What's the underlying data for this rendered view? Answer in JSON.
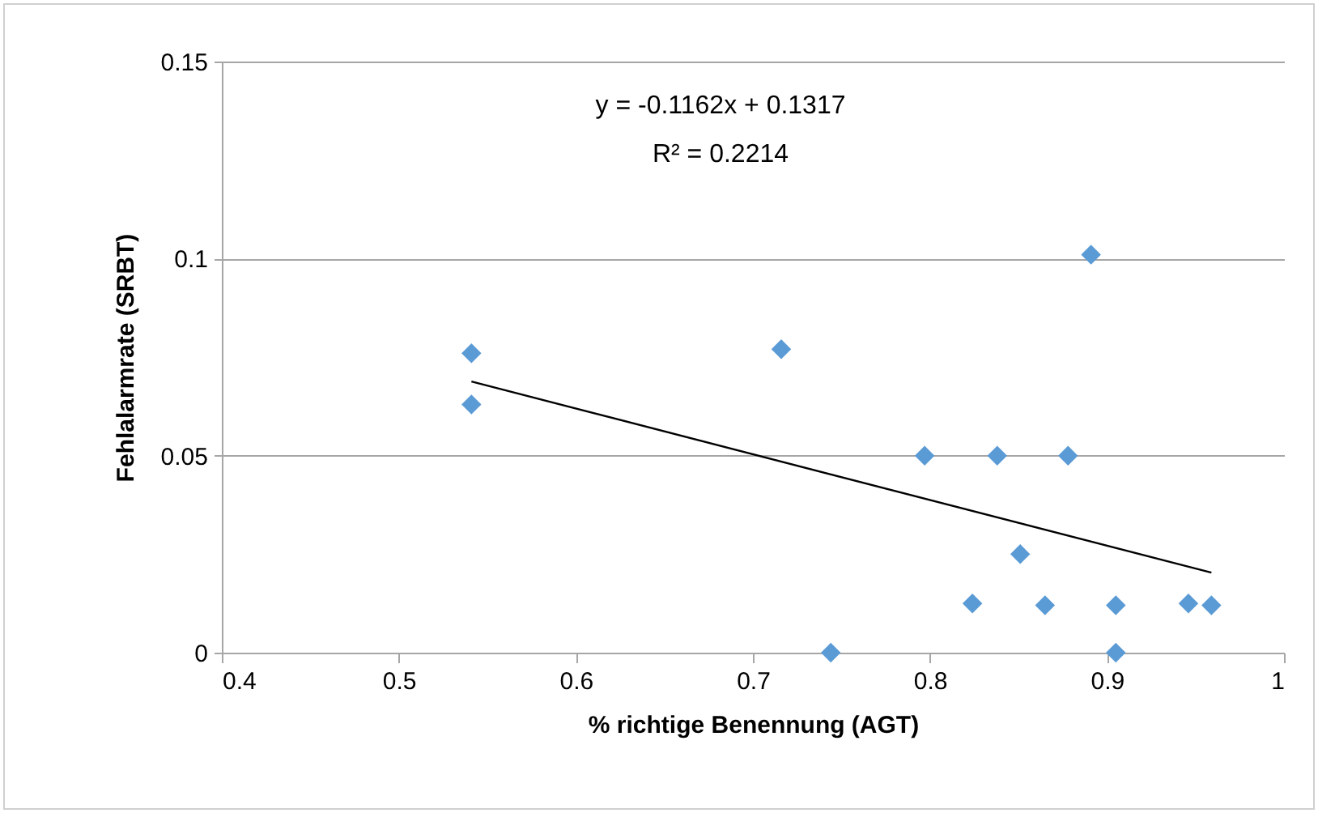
{
  "chart_data": {
    "type": "scatter",
    "xlabel": "% richtige Benennung (AGT)",
    "ylabel": "Fehlalarmrate (SRBT)",
    "annotations": [
      "y = -0.1162x + 0.1317",
      "R² = 0.2214"
    ],
    "xlim": [
      0.4,
      1
    ],
    "xticks": [
      0.4,
      0.5,
      0.6,
      0.7,
      0.8,
      0.9,
      1
    ],
    "ylim": [
      0,
      0.15
    ],
    "yticks": [
      0,
      0.05,
      0.1,
      0.15
    ],
    "grid": "y",
    "series": [
      {
        "color": "#5b9bd5",
        "marker": "diamond",
        "x": [
          0.541,
          0.541,
          0.716,
          0.797,
          0.838,
          0.878,
          0.851,
          0.824,
          0.865,
          0.905,
          0.946,
          0.959,
          0.744,
          0.905,
          0.891
        ],
        "values": [
          0.076,
          0.063,
          0.077,
          0.05,
          0.05,
          0.05,
          0.025,
          0.0125,
          0.012,
          0.012,
          0.0125,
          0.012,
          0,
          0,
          0.101
        ]
      },
      {
        "type": "line",
        "color": "#000000",
        "x": [
          0.541,
          0.959
        ],
        "values": [
          0.0688,
          0.0203
        ]
      }
    ]
  }
}
